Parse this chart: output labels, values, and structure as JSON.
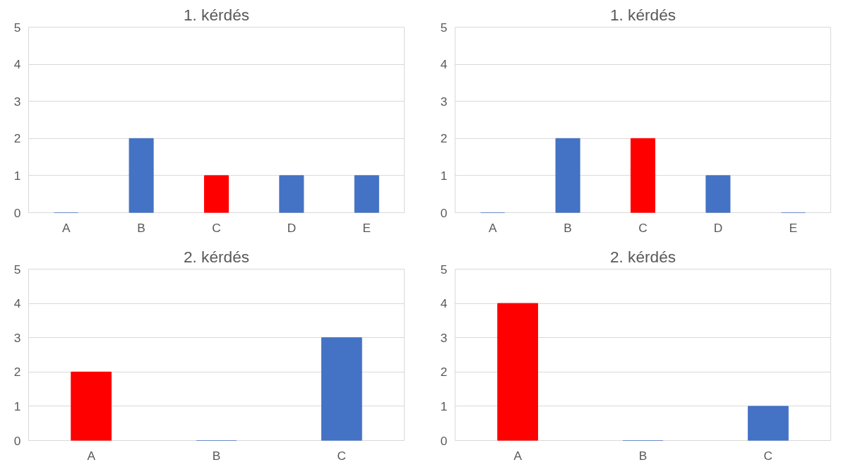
{
  "chart_data": [
    {
      "type": "bar",
      "title": "1. kérdés",
      "categories": [
        "A",
        "B",
        "C",
        "D",
        "E"
      ],
      "values": [
        0,
        2,
        1,
        1,
        1
      ],
      "colors": [
        "#4472c4",
        "#4472c4",
        "#ff0000",
        "#4472c4",
        "#4472c4"
      ],
      "ylim": [
        0,
        5
      ],
      "yticks": [
        0,
        1,
        2,
        3,
        4,
        5
      ],
      "grid": "y"
    },
    {
      "type": "bar",
      "title": "1. kérdés",
      "categories": [
        "A",
        "B",
        "C",
        "D",
        "E"
      ],
      "values": [
        0,
        2,
        2,
        1,
        0
      ],
      "colors": [
        "#4472c4",
        "#4472c4",
        "#ff0000",
        "#4472c4",
        "#4472c4"
      ],
      "ylim": [
        0,
        5
      ],
      "yticks": [
        0,
        1,
        2,
        3,
        4,
        5
      ],
      "grid": "y"
    },
    {
      "type": "bar",
      "title": "2. kérdés",
      "categories": [
        "A",
        "B",
        "C"
      ],
      "values": [
        2,
        0,
        3
      ],
      "colors": [
        "#ff0000",
        "#4472c4",
        "#4472c4"
      ],
      "ylim": [
        0,
        5
      ],
      "yticks": [
        0,
        1,
        2,
        3,
        4,
        5
      ],
      "grid": "y"
    },
    {
      "type": "bar",
      "title": "2. kérdés",
      "categories": [
        "A",
        "B",
        "C"
      ],
      "values": [
        4,
        0,
        1
      ],
      "colors": [
        "#ff0000",
        "#4472c4",
        "#4472c4"
      ],
      "ylim": [
        0,
        5
      ],
      "yticks": [
        0,
        1,
        2,
        3,
        4,
        5
      ],
      "grid": "y"
    }
  ]
}
